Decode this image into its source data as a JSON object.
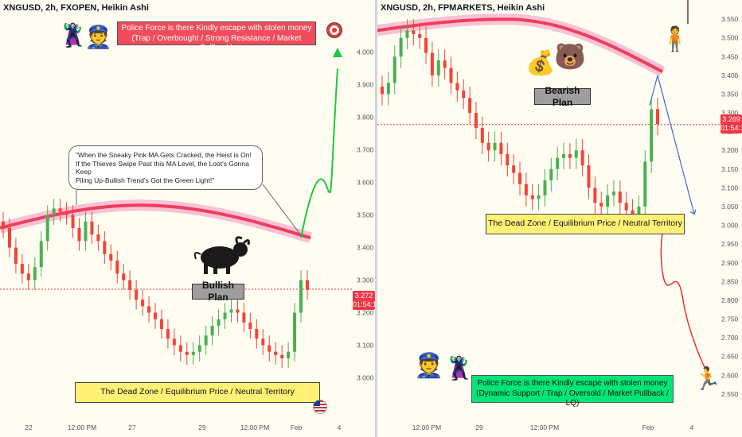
{
  "colors": {
    "up": "#4caf50",
    "down": "#f44336",
    "ma": "#ef3d5e",
    "green_path": "#1ec83c",
    "red_path": "#e8312f",
    "blue_path": "#4169c8"
  },
  "icons": [
    "robber-icon",
    "police-officer-icon",
    "target-icon",
    "bull-icon",
    "bear-icon",
    "money-stack-icon",
    "hanging-bag-icon",
    "handcuffed-robber-icon",
    "us-flag-icon"
  ],
  "left": {
    "title": "XNGUSD, 2h, FXOPEN, Heikin Ashi",
    "red_box": [
      "Police Force is there Kindly escape with stolen money",
      "(Trap / Overbought / Strong Resistance / Market Pullback)"
    ],
    "speech": [
      "\"When the Sneaky Pink MA Gets Cracked, the Heist is On!",
      "If the Thieves Swipe Past this MA Level, the Loot's Gonna Keep",
      "Piling Up-Bullish Trend's Got the Green Light!\""
    ],
    "plan_label": "Bullish Plan",
    "zone_label": "The Dead Zone / Equilibrium Price / Neutral Territory",
    "price_tag": [
      "3.272",
      "01:54:1"
    ]
  },
  "right": {
    "title": "XNGUSD, 2h, FPMARKETS, Heikin Ashi",
    "plan_label": "Bearish Plan",
    "zone_label": "The Dead Zone / Equilibrium Price / Neutral Territory",
    "green_box": [
      "Police Force is there Kindly escape with stolen money",
      "(Dynamic Support / Trap / Oversold / Market Pullback / LQ)"
    ],
    "price_tag": [
      "3.269",
      "01:54:1"
    ]
  },
  "chart_data": [
    {
      "type": "candlestick",
      "title": "XNGUSD, 2h, FXOPEN, Heikin Ashi",
      "x_tick_labels": [
        "22",
        "12:00 PM",
        "27",
        "29",
        "12:00 PM",
        "Feb",
        "4"
      ],
      "y_tick_labels": [
        "3.000",
        "3.100",
        "3.200",
        "3.300",
        "3.400",
        "3.500",
        "3.600",
        "3.700",
        "3.800",
        "3.900",
        "4.000"
      ],
      "ylim": [
        2.95,
        4.07
      ],
      "last_price": 3.272,
      "closes": [
        3.46,
        3.4,
        3.35,
        3.32,
        3.3,
        3.34,
        3.42,
        3.5,
        3.52,
        3.51,
        3.5,
        3.46,
        3.42,
        3.48,
        3.44,
        3.42,
        3.38,
        3.36,
        3.32,
        3.3,
        3.27,
        3.24,
        3.22,
        3.2,
        3.18,
        3.15,
        3.12,
        3.1,
        3.08,
        3.07,
        3.08,
        3.1,
        3.13,
        3.16,
        3.18,
        3.2,
        3.21,
        3.2,
        3.17,
        3.15,
        3.12,
        3.1,
        3.08,
        3.07,
        3.06,
        3.08,
        3.2,
        3.3,
        3.27
      ],
      "moving_average": {
        "start": 3.46,
        "peak": 3.53,
        "end": 3.43
      },
      "projection": [
        3.43,
        3.6,
        3.64,
        3.59,
        3.55,
        3.95
      ],
      "annotations": [
        "Bullish Plan",
        "The Dead Zone / Equilibrium Price / Neutral Territory"
      ]
    },
    {
      "type": "candlestick",
      "title": "XNGUSD, 2h, FPMARKETS, Heikin Ashi",
      "x_tick_labels": [
        "12:00 PM",
        "29",
        "12:00 PM",
        "Feb",
        "4"
      ],
      "y_tick_labels": [
        "2.550",
        "2.600",
        "2.650",
        "2.700",
        "2.750",
        "2.800",
        "2.850",
        "2.900",
        "2.950",
        "3.000",
        "3.050",
        "3.100",
        "3.150",
        "3.200",
        "3.250",
        "3.300",
        "3.350",
        "3.400",
        "3.450",
        "3.500",
        "3.550"
      ],
      "ylim": [
        2.52,
        3.58
      ],
      "last_price": 3.269,
      "closes": [
        3.35,
        3.38,
        3.45,
        3.5,
        3.52,
        3.51,
        3.5,
        3.46,
        3.4,
        3.44,
        3.42,
        3.38,
        3.36,
        3.34,
        3.3,
        3.26,
        3.22,
        3.2,
        3.22,
        3.19,
        3.16,
        3.14,
        3.11,
        3.08,
        3.07,
        3.08,
        3.12,
        3.15,
        3.18,
        3.19,
        3.18,
        3.2,
        3.16,
        3.1,
        3.06,
        3.05,
        3.08,
        3.09,
        3.06,
        3.04,
        3.03,
        3.05,
        3.17,
        3.31,
        3.27
      ],
      "moving_average": {
        "start": 3.52,
        "peak": 3.55,
        "end": 3.41
      },
      "projection_down": [
        3.4,
        3.03
      ],
      "projection_red": [
        2.98,
        2.84,
        2.88,
        2.62
      ],
      "annotations": [
        "Bearish Plan",
        "The Dead Zone / Equilibrium Price / Neutral Territory"
      ]
    }
  ]
}
